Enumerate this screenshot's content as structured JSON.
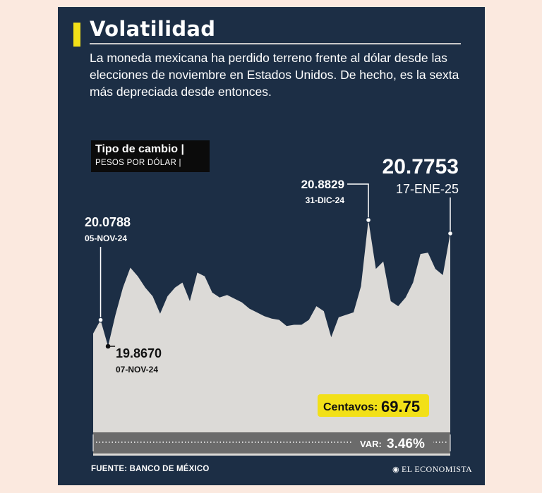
{
  "header": {
    "title": "Volatilidad",
    "subtitle": "La moneda mexicana ha perdido terreno frente al dólar desde las elecciones de noviembre en Estados Unidos. De hecho, es la sexta más depreciada desde entonces."
  },
  "legend": {
    "title": "Tipo de cambio |",
    "subtitle": "PESOS POR DÓLAR |"
  },
  "chart_data": {
    "type": "area",
    "title": "Tipo de cambio",
    "ylabel": "PESOS POR DÓLAR",
    "ylim": [
      19.2,
      21.0
    ],
    "series": [
      {
        "values": [
          19.97,
          20.0788,
          19.867,
          20.12,
          20.34,
          20.5,
          20.43,
          20.34,
          20.27,
          20.13,
          20.27,
          20.34,
          20.38,
          20.23,
          20.46,
          20.43,
          20.3,
          20.26,
          20.28,
          20.25,
          20.22,
          20.17,
          20.14,
          20.11,
          20.09,
          20.08,
          20.03,
          20.04,
          20.04,
          20.08,
          20.19,
          20.15,
          19.94,
          20.1,
          20.12,
          20.14,
          20.35,
          20.8829,
          20.49,
          20.55,
          20.23,
          20.19,
          20.26,
          20.38,
          20.61,
          20.62,
          20.49,
          20.44,
          20.7753
        ]
      }
    ],
    "annotations": [
      {
        "value": "20.0788",
        "date": "05-NOV-24"
      },
      {
        "value": "19.8670",
        "date": "07-NOV-24"
      },
      {
        "value": "20.8829",
        "date": "31-DIC-24"
      },
      {
        "value": "20.7753",
        "date": "17-ENE-25"
      }
    ],
    "callout_label": "Centavos:",
    "callout_value": "69.75",
    "var_label": "VAR:",
    "var_value": "3.46%",
    "colors": {
      "area": "#dcdad7",
      "band": "#6b6b6b",
      "callout": "#f2e018",
      "background": "#1c2e45"
    }
  },
  "footer": {
    "source": "FUENTE: BANCO DE MÉXICO",
    "logo_mark": "◉",
    "logo_text": "EL ECONOMISTA"
  }
}
